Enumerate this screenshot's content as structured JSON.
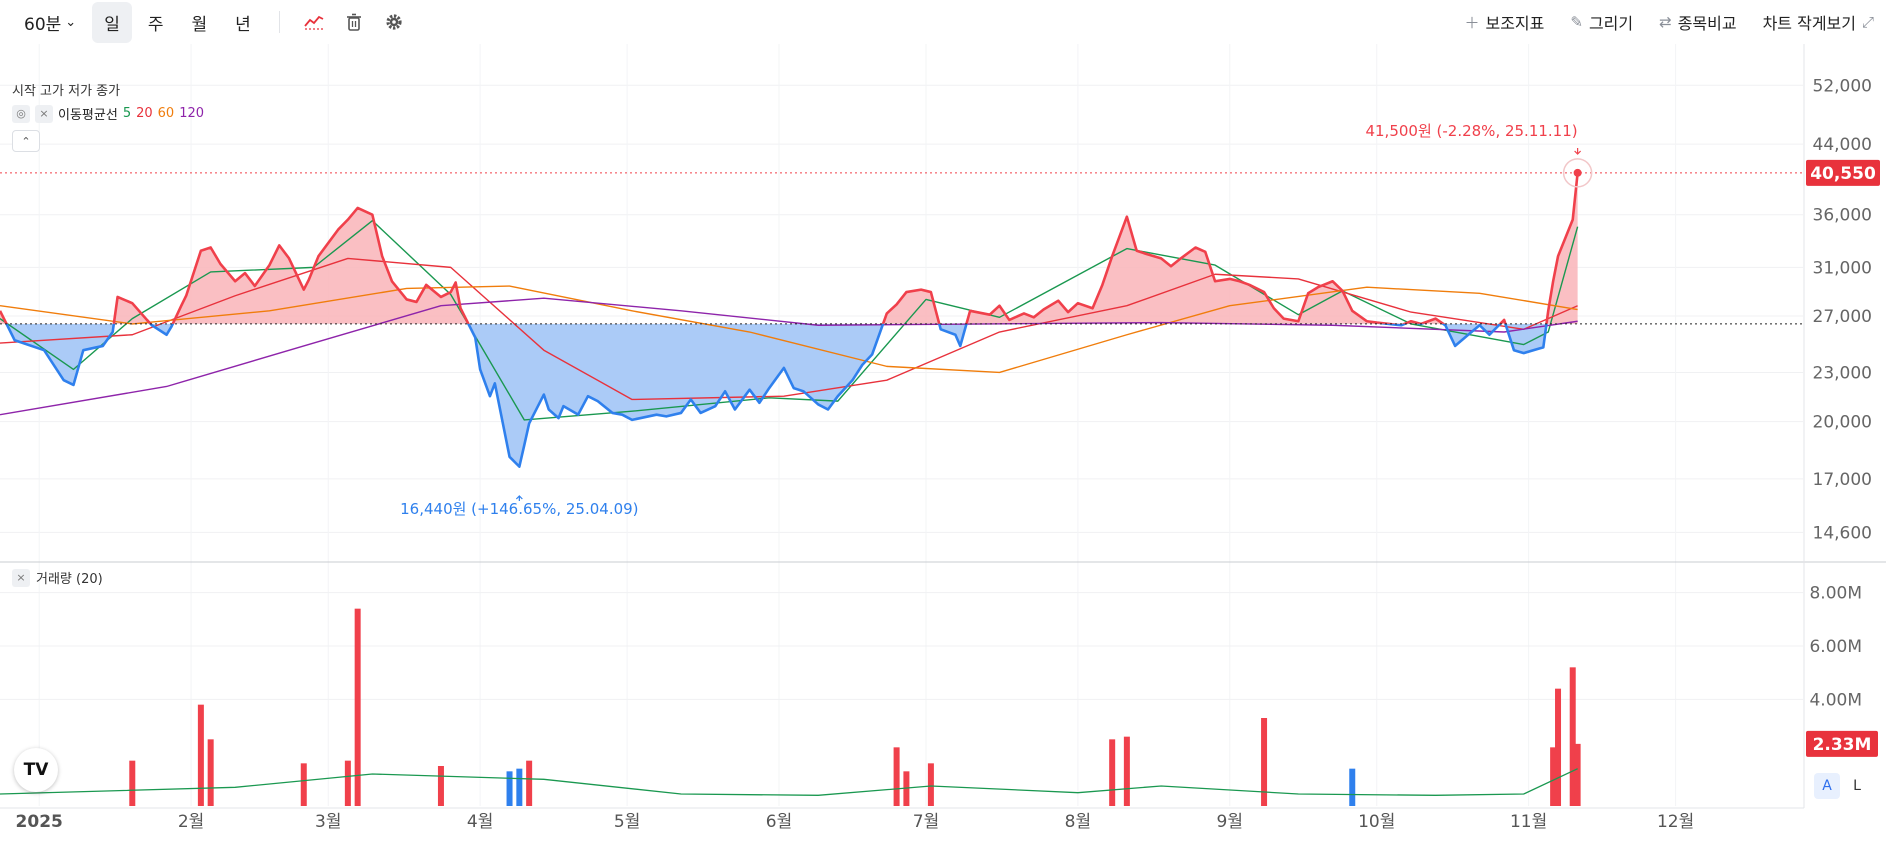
{
  "toolbar": {
    "interval": "60분",
    "periods": [
      "일",
      "주",
      "월",
      "년"
    ],
    "active_period": "일",
    "right_buttons": [
      {
        "icon": "plus-icon",
        "label": "보조지표"
      },
      {
        "icon": "pencil-icon",
        "label": "그리기"
      },
      {
        "icon": "compare-icon",
        "label": "종목비교"
      },
      {
        "icon": "shrink-icon",
        "label": "차트 작게보기"
      }
    ]
  },
  "legend": {
    "ohlc_text": "시작 고가 저가 종가",
    "ma_label": "이동평균선",
    "ma_periods": [
      {
        "label": "5",
        "color": "#1a9850"
      },
      {
        "label": "20",
        "color": "#e8323c"
      },
      {
        "label": "60",
        "color": "#f07d0c"
      },
      {
        "label": "120",
        "color": "#8e24aa"
      }
    ],
    "volume_label": "거래량 (20)"
  },
  "colors": {
    "up": "#f0404b",
    "up_fill": "#f9b4b8",
    "down": "#2f80ed",
    "down_fill": "#a6c8f7",
    "current_price_bg": "#e8323c"
  },
  "logo_text": "TV",
  "scale_buttons": [
    "A",
    "L"
  ],
  "chart_data": {
    "type": "area",
    "price_scale": "log",
    "ylim": [
      13500,
      54000
    ],
    "y_ticks": [
      "52,000",
      "44,000",
      "36,000",
      "31,000",
      "27,000",
      "23,000",
      "20,000",
      "17,000",
      "14,600"
    ],
    "baseline": 26400,
    "x_ticks": [
      {
        "label": "2025",
        "date": "2025-01-01"
      },
      {
        "label": "2월",
        "date": "2025-02-01"
      },
      {
        "label": "3월",
        "date": "2025-03-01"
      },
      {
        "label": "4월",
        "date": "2025-04-01"
      },
      {
        "label": "5월",
        "date": "2025-05-01"
      },
      {
        "label": "6월",
        "date": "2025-06-01"
      },
      {
        "label": "7월",
        "date": "2025-07-01"
      },
      {
        "label": "8월",
        "date": "2025-08-01"
      },
      {
        "label": "9월",
        "date": "2025-09-01"
      },
      {
        "label": "10월",
        "date": "2025-10-01"
      },
      {
        "label": "11월",
        "date": "2025-11-01"
      },
      {
        "label": "12월",
        "date": "2025-12-01"
      }
    ],
    "xlim": [
      "2024-12-24",
      "2025-12-27"
    ],
    "close": [
      [
        "2024-12-24",
        27400
      ],
      [
        "2024-12-27",
        25200
      ],
      [
        "2025-01-02",
        24500
      ],
      [
        "2025-01-06",
        22500
      ],
      [
        "2025-01-08",
        22200
      ],
      [
        "2025-01-10",
        24500
      ],
      [
        "2025-01-14",
        24800
      ],
      [
        "2025-01-16",
        25800
      ],
      [
        "2025-01-17",
        28500
      ],
      [
        "2025-01-20",
        28000
      ],
      [
        "2025-01-23",
        26700
      ],
      [
        "2025-01-24",
        26300
      ],
      [
        "2025-01-27",
        25600
      ],
      [
        "2025-01-28",
        26200
      ],
      [
        "2025-01-30",
        27800
      ],
      [
        "2025-01-31",
        28600
      ],
      [
        "2025-02-03",
        32500
      ],
      [
        "2025-02-05",
        32800
      ],
      [
        "2025-02-07",
        31300
      ],
      [
        "2025-02-10",
        29800
      ],
      [
        "2025-02-12",
        30500
      ],
      [
        "2025-02-14",
        29400
      ],
      [
        "2025-02-17",
        31200
      ],
      [
        "2025-02-19",
        33000
      ],
      [
        "2025-02-21",
        31800
      ],
      [
        "2025-02-24",
        29100
      ],
      [
        "2025-02-25",
        29900
      ],
      [
        "2025-02-27",
        32000
      ],
      [
        "2025-03-03",
        34500
      ],
      [
        "2025-03-05",
        35500
      ],
      [
        "2025-03-07",
        36700
      ],
      [
        "2025-03-10",
        36000
      ],
      [
        "2025-03-12",
        32000
      ],
      [
        "2025-03-14",
        29800
      ],
      [
        "2025-03-17",
        28300
      ],
      [
        "2025-03-19",
        28100
      ],
      [
        "2025-03-21",
        29500
      ],
      [
        "2025-03-24",
        28500
      ],
      [
        "2025-03-26",
        28900
      ],
      [
        "2025-03-27",
        29700
      ],
      [
        "2025-03-28",
        27600
      ],
      [
        "2025-03-31",
        25400
      ],
      [
        "2025-04-01",
        23200
      ],
      [
        "2025-04-03",
        21500
      ],
      [
        "2025-04-04",
        22300
      ],
      [
        "2025-04-07",
        18100
      ],
      [
        "2025-04-09",
        17600
      ],
      [
        "2025-04-10",
        18700
      ],
      [
        "2025-04-11",
        19900
      ],
      [
        "2025-04-14",
        21600
      ],
      [
        "2025-04-15",
        20700
      ],
      [
        "2025-04-17",
        20200
      ],
      [
        "2025-04-18",
        20900
      ],
      [
        "2025-04-21",
        20400
      ],
      [
        "2025-04-23",
        21500
      ],
      [
        "2025-04-25",
        21200
      ],
      [
        "2025-04-28",
        20500
      ],
      [
        "2025-04-30",
        20400
      ],
      [
        "2025-05-02",
        20100
      ],
      [
        "2025-05-07",
        20400
      ],
      [
        "2025-05-09",
        20300
      ],
      [
        "2025-05-12",
        20500
      ],
      [
        "2025-05-14",
        21300
      ],
      [
        "2025-05-16",
        20500
      ],
      [
        "2025-05-19",
        20900
      ],
      [
        "2025-05-21",
        21800
      ],
      [
        "2025-05-23",
        20700
      ],
      [
        "2025-05-26",
        21900
      ],
      [
        "2025-05-28",
        21100
      ],
      [
        "2025-05-30",
        22000
      ],
      [
        "2025-06-02",
        23300
      ],
      [
        "2025-06-04",
        22000
      ],
      [
        "2025-06-06",
        21800
      ],
      [
        "2025-06-09",
        21000
      ],
      [
        "2025-06-11",
        20700
      ],
      [
        "2025-06-13",
        21500
      ],
      [
        "2025-06-16",
        22500
      ],
      [
        "2025-06-18",
        23500
      ],
      [
        "2025-06-20",
        24200
      ],
      [
        "2025-06-23",
        27200
      ],
      [
        "2025-06-25",
        27900
      ],
      [
        "2025-06-27",
        28900
      ],
      [
        "2025-06-30",
        29100
      ],
      [
        "2025-07-02",
        28900
      ],
      [
        "2025-07-04",
        26000
      ],
      [
        "2025-07-07",
        25600
      ],
      [
        "2025-07-08",
        24800
      ],
      [
        "2025-07-10",
        27400
      ],
      [
        "2025-07-14",
        27100
      ],
      [
        "2025-07-16",
        27800
      ],
      [
        "2025-07-18",
        26700
      ],
      [
        "2025-07-21",
        27200
      ],
      [
        "2025-07-23",
        26900
      ],
      [
        "2025-07-25",
        27500
      ],
      [
        "2025-07-28",
        28200
      ],
      [
        "2025-07-30",
        27300
      ],
      [
        "2025-08-01",
        28000
      ],
      [
        "2025-08-04",
        27600
      ],
      [
        "2025-08-06",
        29500
      ],
      [
        "2025-08-08",
        32000
      ],
      [
        "2025-08-11",
        35800
      ],
      [
        "2025-08-13",
        32500
      ],
      [
        "2025-08-15",
        32200
      ],
      [
        "2025-08-18",
        31800
      ],
      [
        "2025-08-20",
        31100
      ],
      [
        "2025-08-22",
        31800
      ],
      [
        "2025-08-25",
        32800
      ],
      [
        "2025-08-27",
        32400
      ],
      [
        "2025-08-29",
        29800
      ],
      [
        "2025-09-01",
        30000
      ],
      [
        "2025-09-03",
        29800
      ],
      [
        "2025-09-05",
        29500
      ],
      [
        "2025-09-08",
        28900
      ],
      [
        "2025-09-10",
        27600
      ],
      [
        "2025-09-12",
        26800
      ],
      [
        "2025-09-15",
        26600
      ],
      [
        "2025-09-17",
        28800
      ],
      [
        "2025-09-19",
        29300
      ],
      [
        "2025-09-22",
        29800
      ],
      [
        "2025-09-24",
        29000
      ],
      [
        "2025-09-26",
        27400
      ],
      [
        "2025-09-29",
        26600
      ],
      [
        "2025-10-01",
        26500
      ],
      [
        "2025-10-06",
        26300
      ],
      [
        "2025-10-08",
        26600
      ],
      [
        "2025-10-10",
        26400
      ],
      [
        "2025-10-13",
        26800
      ],
      [
        "2025-10-15",
        26300
      ],
      [
        "2025-10-17",
        24800
      ],
      [
        "2025-10-20",
        25700
      ],
      [
        "2025-10-22",
        26300
      ],
      [
        "2025-10-24",
        25600
      ],
      [
        "2025-10-27",
        26700
      ],
      [
        "2025-10-29",
        24500
      ],
      [
        "2025-10-31",
        24300
      ],
      [
        "2025-11-03",
        24600
      ],
      [
        "2025-11-04",
        24700
      ],
      [
        "2025-11-05",
        27400
      ],
      [
        "2025-11-06",
        29800
      ],
      [
        "2025-11-07",
        32000
      ],
      [
        "2025-11-10",
        35500
      ],
      [
        "2025-11-11",
        40550
      ]
    ],
    "ma": [
      {
        "period": 5,
        "points": [
          [
            "2024-12-24",
            26800
          ],
          [
            "2025-01-08",
            23200
          ],
          [
            "2025-01-20",
            26800
          ],
          [
            "2025-02-05",
            30600
          ],
          [
            "2025-02-26",
            31000
          ],
          [
            "2025-03-10",
            35400
          ],
          [
            "2025-03-26",
            28700
          ],
          [
            "2025-04-10",
            20100
          ],
          [
            "2025-05-02",
            20600
          ],
          [
            "2025-05-30",
            21400
          ],
          [
            "2025-06-13",
            21200
          ],
          [
            "2025-07-01",
            28300
          ],
          [
            "2025-07-16",
            26900
          ],
          [
            "2025-08-11",
            32700
          ],
          [
            "2025-08-29",
            31200
          ],
          [
            "2025-09-15",
            27100
          ],
          [
            "2025-09-24",
            29000
          ],
          [
            "2025-10-08",
            26400
          ],
          [
            "2025-10-31",
            24900
          ],
          [
            "2025-11-05",
            25800
          ],
          [
            "2025-11-11",
            34800
          ]
        ]
      },
      {
        "period": 20,
        "points": [
          [
            "2024-12-24",
            25000
          ],
          [
            "2025-01-20",
            25600
          ],
          [
            "2025-02-10",
            28600
          ],
          [
            "2025-03-05",
            31800
          ],
          [
            "2025-03-26",
            31000
          ],
          [
            "2025-04-14",
            24500
          ],
          [
            "2025-05-02",
            21300
          ],
          [
            "2025-06-02",
            21500
          ],
          [
            "2025-06-23",
            22500
          ],
          [
            "2025-07-16",
            25800
          ],
          [
            "2025-08-11",
            27800
          ],
          [
            "2025-08-29",
            30400
          ],
          [
            "2025-09-15",
            30000
          ],
          [
            "2025-10-08",
            27300
          ],
          [
            "2025-10-31",
            26000
          ],
          [
            "2025-11-11",
            27800
          ]
        ]
      },
      {
        "period": 60,
        "points": [
          [
            "2024-12-24",
            27800
          ],
          [
            "2025-01-20",
            26400
          ],
          [
            "2025-02-17",
            27400
          ],
          [
            "2025-03-17",
            29200
          ],
          [
            "2025-04-07",
            29400
          ],
          [
            "2025-05-02",
            27400
          ],
          [
            "2025-05-26",
            25800
          ],
          [
            "2025-06-23",
            23400
          ],
          [
            "2025-07-16",
            23000
          ],
          [
            "2025-08-11",
            25600
          ],
          [
            "2025-09-01",
            27800
          ],
          [
            "2025-09-29",
            29300
          ],
          [
            "2025-10-22",
            28800
          ],
          [
            "2025-11-11",
            27500
          ]
        ]
      },
      {
        "period": 120,
        "points": [
          [
            "2024-12-24",
            20400
          ],
          [
            "2025-01-27",
            22100
          ],
          [
            "2025-02-24",
            24800
          ],
          [
            "2025-03-24",
            27800
          ],
          [
            "2025-04-14",
            28400
          ],
          [
            "2025-05-12",
            27400
          ],
          [
            "2025-06-09",
            26300
          ],
          [
            "2025-07-14",
            26400
          ],
          [
            "2025-08-18",
            26500
          ],
          [
            "2025-09-22",
            26300
          ],
          [
            "2025-10-27",
            25800
          ],
          [
            "2025-11-11",
            26600
          ]
        ]
      }
    ],
    "high_annotation": {
      "text": "41,500원 (-2.28%, 25.11.11)",
      "date": "2025-11-11",
      "value": 41500
    },
    "low_annotation": {
      "text": "16,440원 (+146.65%, 25.04.09)",
      "date": "2025-04-09",
      "value": 16440
    },
    "current_price": {
      "label": "40,550",
      "value": 40550
    },
    "volume": {
      "ylim": [
        0,
        9000000
      ],
      "y_ticks": [
        "8.00M",
        "6.00M",
        "4.00M"
      ],
      "current_label": "2.33M",
      "current_value": 2330000,
      "bars": [
        {
          "date": "2025-01-20",
          "value": 1700000,
          "dir": "up"
        },
        {
          "date": "2025-02-03",
          "value": 3800000,
          "dir": "up"
        },
        {
          "date": "2025-02-05",
          "value": 2500000,
          "dir": "up"
        },
        {
          "date": "2025-02-24",
          "value": 1600000,
          "dir": "up"
        },
        {
          "date": "2025-03-05",
          "value": 1700000,
          "dir": "up"
        },
        {
          "date": "2025-03-07",
          "value": 7400000,
          "dir": "up"
        },
        {
          "date": "2025-03-24",
          "value": 1500000,
          "dir": "up"
        },
        {
          "date": "2025-04-07",
          "value": 1300000,
          "dir": "down"
        },
        {
          "date": "2025-04-09",
          "value": 1400000,
          "dir": "down"
        },
        {
          "date": "2025-04-11",
          "value": 1700000,
          "dir": "up"
        },
        {
          "date": "2025-06-25",
          "value": 2200000,
          "dir": "up"
        },
        {
          "date": "2025-06-27",
          "value": 1300000,
          "dir": "up"
        },
        {
          "date": "2025-07-02",
          "value": 1600000,
          "dir": "up"
        },
        {
          "date": "2025-08-08",
          "value": 2500000,
          "dir": "up"
        },
        {
          "date": "2025-08-11",
          "value": 2600000,
          "dir": "up"
        },
        {
          "date": "2025-09-08",
          "value": 3300000,
          "dir": "up"
        },
        {
          "date": "2025-09-26",
          "value": 1400000,
          "dir": "down"
        },
        {
          "date": "2025-11-06",
          "value": 2200000,
          "dir": "up"
        },
        {
          "date": "2025-11-07",
          "value": 4400000,
          "dir": "up"
        },
        {
          "date": "2025-11-10",
          "value": 5200000,
          "dir": "up"
        },
        {
          "date": "2025-11-11",
          "value": 2330000,
          "dir": "up"
        }
      ],
      "ma20": [
        [
          "2024-12-24",
          450000
        ],
        [
          "2025-02-10",
          700000
        ],
        [
          "2025-03-10",
          1200000
        ],
        [
          "2025-04-14",
          1000000
        ],
        [
          "2025-05-12",
          450000
        ],
        [
          "2025-06-09",
          400000
        ],
        [
          "2025-07-02",
          750000
        ],
        [
          "2025-08-01",
          500000
        ],
        [
          "2025-08-18",
          750000
        ],
        [
          "2025-09-15",
          450000
        ],
        [
          "2025-10-13",
          400000
        ],
        [
          "2025-10-31",
          450000
        ],
        [
          "2025-11-11",
          1400000
        ]
      ]
    }
  }
}
